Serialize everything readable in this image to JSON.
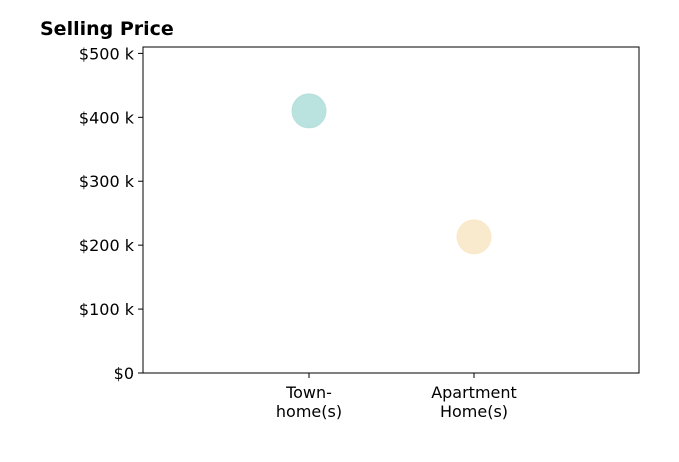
{
  "chart_data": {
    "type": "scatter",
    "title": "Selling Price",
    "xlabel": "",
    "ylabel": "",
    "categories": [
      [
        "Town-",
        "home(s)"
      ],
      [
        "Apartment",
        "Home(s)"
      ]
    ],
    "ylim": [
      0,
      510000
    ],
    "yticks": [
      {
        "value": 0,
        "label": "$0"
      },
      {
        "value": 100000,
        "label": "$100 k"
      },
      {
        "value": 200000,
        "label": "$200 k"
      },
      {
        "value": 300000,
        "label": "$300 k"
      },
      {
        "value": 400000,
        "label": "$400 k"
      },
      {
        "value": 500000,
        "label": "$500 k"
      }
    ],
    "points": [
      {
        "category_index": 0,
        "y": 410000,
        "color": "#b2dfdb"
      },
      {
        "category_index": 1,
        "y": 213000,
        "color": "#f8e8c8"
      }
    ],
    "grid": false,
    "legend": "none"
  }
}
